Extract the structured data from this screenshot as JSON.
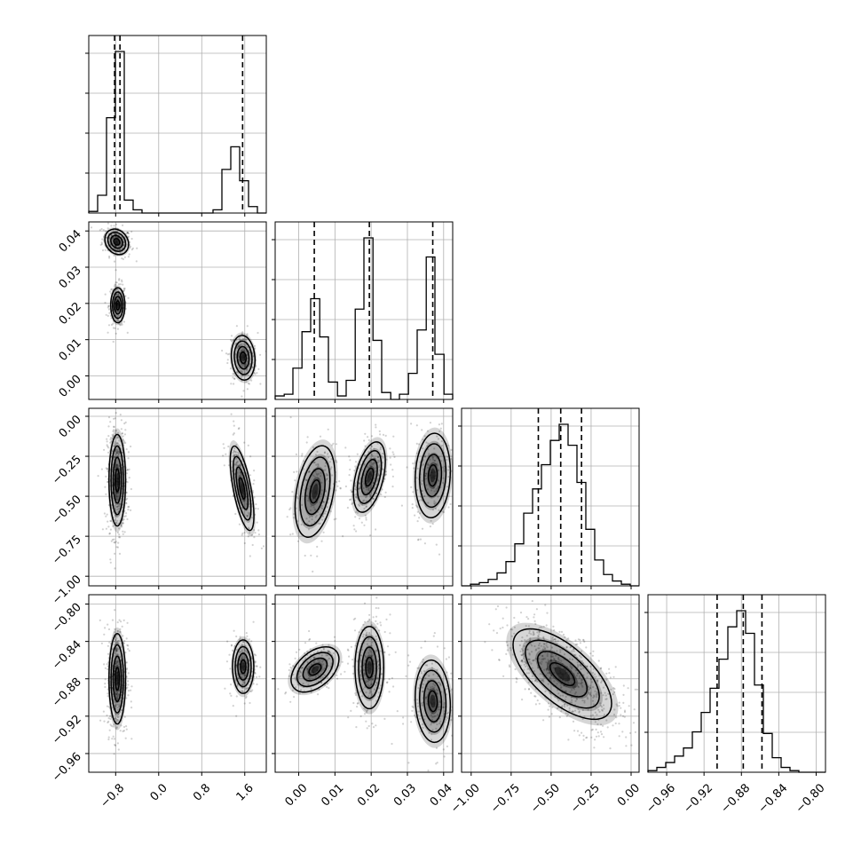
{
  "chart_data": {
    "type": "corner",
    "title": "",
    "grid": true,
    "n_params": 4,
    "params": [
      {
        "label": "",
        "range": [
          -1.3,
          2.0
        ],
        "ticks": [
          -0.8,
          0.0,
          0.8,
          1.6
        ],
        "tick_labels": [
          "−0.8",
          "0.0",
          "0.8",
          "1.6"
        ]
      },
      {
        "label": "",
        "range": [
          -0.0065,
          0.0425
        ],
        "ticks": [
          0.0,
          0.01,
          0.02,
          0.03,
          0.04
        ],
        "tick_labels": [
          "0.00",
          "0.01",
          "0.02",
          "0.03",
          "0.04"
        ]
      },
      {
        "label": "",
        "range": [
          -1.06,
          0.05
        ],
        "ticks": [
          -1.0,
          -0.75,
          -0.5,
          -0.25,
          0.0
        ],
        "tick_labels": [
          "−1.00",
          "−0.75",
          "−0.50",
          "−0.25",
          "0.00"
        ]
      },
      {
        "label": "",
        "range": [
          -0.98,
          -0.79
        ],
        "ticks": [
          -0.96,
          -0.92,
          -0.88,
          -0.84,
          -0.8
        ],
        "tick_labels": [
          "−0.96",
          "−0.92",
          "−0.88",
          "−0.84",
          "−0.80"
        ]
      }
    ],
    "histograms": [
      {
        "param": 0,
        "bin_edges": [
          -1.3,
          -1.135,
          -0.97,
          -0.805,
          -0.64,
          -0.475,
          -0.31,
          -0.145,
          0.02,
          0.185,
          0.35,
          0.515,
          0.68,
          0.845,
          1.01,
          1.175,
          1.34,
          1.505,
          1.67,
          1.835,
          2.0
        ],
        "counts": [
          0.01,
          0.11,
          0.59,
          1.0,
          0.08,
          0.02,
          0.0,
          0.0,
          0.0,
          0.0,
          0.0,
          0.0,
          0.0,
          0.0,
          0.02,
          0.27,
          0.41,
          0.2,
          0.04,
          0.0
        ],
        "quantiles": [
          -0.82,
          -0.72,
          1.56
        ]
      },
      {
        "param": 1,
        "bin_edges": [
          -0.0065,
          -0.004,
          -0.0016,
          0.0009,
          0.0033,
          0.0058,
          0.0082,
          0.0107,
          0.0131,
          0.0156,
          0.018,
          0.0205,
          0.0229,
          0.0254,
          0.0278,
          0.0303,
          0.0327,
          0.0352,
          0.0376,
          0.0401,
          0.0425
        ],
        "counts": [
          0.02,
          0.03,
          0.18,
          0.39,
          0.58,
          0.36,
          0.1,
          0.02,
          0.11,
          0.52,
          0.93,
          0.34,
          0.04,
          0.0,
          0.03,
          0.15,
          0.4,
          0.82,
          0.26,
          0.03
        ],
        "quantiles": [
          0.0043,
          0.0195,
          0.037
        ]
      },
      {
        "param": 2,
        "bin_edges": [
          -1.06,
          -1.0045,
          -0.949,
          -0.8935,
          -0.838,
          -0.7825,
          -0.727,
          -0.6715,
          -0.616,
          -0.5605,
          -0.505,
          -0.4495,
          -0.394,
          -0.3385,
          -0.283,
          -0.2275,
          -0.172,
          -0.1165,
          -0.061,
          -0.0055,
          0.05
        ],
        "counts": [
          0.0,
          0.01,
          0.02,
          0.04,
          0.08,
          0.15,
          0.26,
          0.45,
          0.6,
          0.75,
          0.9,
          1.0,
          0.87,
          0.64,
          0.35,
          0.16,
          0.07,
          0.03,
          0.01,
          0.0
        ],
        "quantiles": [
          -0.58,
          -0.44,
          -0.31
        ]
      },
      {
        "param": 3,
        "bin_edges": [
          -0.98,
          -0.9705,
          -0.961,
          -0.9515,
          -0.942,
          -0.9325,
          -0.923,
          -0.9135,
          -0.904,
          -0.8945,
          -0.885,
          -0.8755,
          -0.866,
          -0.8565,
          -0.847,
          -0.8375,
          -0.828,
          -0.8185,
          -0.809,
          -0.7995,
          -0.79
        ],
        "counts": [
          0.01,
          0.03,
          0.06,
          0.1,
          0.15,
          0.25,
          0.37,
          0.52,
          0.7,
          0.9,
          1.0,
          0.86,
          0.54,
          0.24,
          0.09,
          0.03,
          0.01,
          0.0,
          0.0,
          0.0
        ],
        "quantiles": [
          -0.906,
          -0.878,
          -0.858
        ]
      }
    ],
    "pairs": [
      {
        "x": 0,
        "y": 1,
        "modes": [
          {
            "mx": -0.78,
            "my": 0.037,
            "sx": 0.1,
            "sy": 0.0016,
            "rho": -0.2,
            "w": 0.34
          },
          {
            "mx": -0.76,
            "my": 0.0195,
            "sx": 0.06,
            "sy": 0.0022,
            "rho": 0.0,
            "w": 0.36
          },
          {
            "mx": 1.57,
            "my": 0.005,
            "sx": 0.1,
            "sy": 0.0028,
            "rho": -0.1,
            "w": 0.3
          }
        ]
      },
      {
        "x": 0,
        "y": 2,
        "modes": [
          {
            "mx": -0.77,
            "my": -0.4,
            "sx": 0.07,
            "sy": 0.13,
            "rho": 0.0,
            "w": 0.7
          },
          {
            "mx": 1.55,
            "my": -0.45,
            "sx": 0.1,
            "sy": 0.12,
            "rho": -0.65,
            "w": 0.3
          }
        ]
      },
      {
        "x": 0,
        "y": 3,
        "modes": [
          {
            "mx": -0.77,
            "my": -0.88,
            "sx": 0.07,
            "sy": 0.022,
            "rho": 0.0,
            "w": 0.7
          },
          {
            "mx": 1.57,
            "my": -0.867,
            "sx": 0.09,
            "sy": 0.013,
            "rho": 0.0,
            "w": 0.3
          }
        ]
      },
      {
        "x": 1,
        "y": 2,
        "modes": [
          {
            "mx": 0.0045,
            "my": -0.47,
            "sx": 0.0025,
            "sy": 0.13,
            "rho": 0.35,
            "w": 0.3
          },
          {
            "mx": 0.0195,
            "my": -0.38,
            "sx": 0.002,
            "sy": 0.1,
            "rho": 0.45,
            "w": 0.4
          },
          {
            "mx": 0.037,
            "my": -0.37,
            "sx": 0.0022,
            "sy": 0.12,
            "rho": 0.1,
            "w": 0.3
          }
        ]
      },
      {
        "x": 1,
        "y": 3,
        "modes": [
          {
            "mx": 0.0045,
            "my": -0.87,
            "sx": 0.003,
            "sy": 0.011,
            "rho": 0.45,
            "w": 0.3
          },
          {
            "mx": 0.0195,
            "my": -0.868,
            "sx": 0.0018,
            "sy": 0.02,
            "rho": 0.0,
            "w": 0.4
          },
          {
            "mx": 0.037,
            "my": -0.904,
            "sx": 0.0022,
            "sy": 0.02,
            "rho": -0.1,
            "w": 0.3
          }
        ]
      },
      {
        "x": 2,
        "y": 3,
        "modes": [
          {
            "mx": -0.43,
            "my": -0.875,
            "sx": 0.14,
            "sy": 0.022,
            "rho": -0.65,
            "w": 1.0
          }
        ]
      }
    ]
  }
}
